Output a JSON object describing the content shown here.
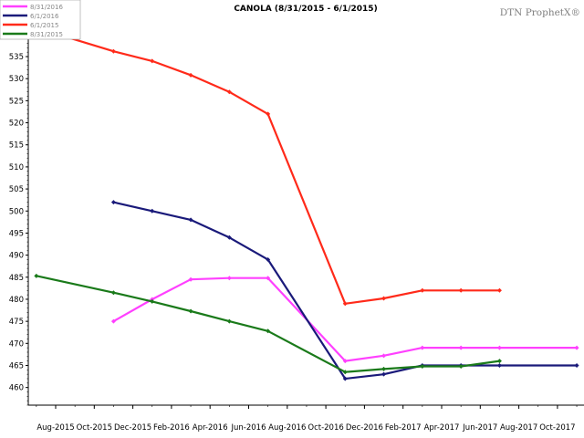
{
  "chart_data": {
    "type": "line",
    "title": "CANOLA (8/31/2015 - 6/1/2015)",
    "watermark": "DTN ProphetX®",
    "xlabel": "",
    "ylabel": "",
    "ylim": [
      456,
      547
    ],
    "y_ticks": [
      460,
      465,
      470,
      475,
      480,
      485,
      490,
      495,
      500,
      505,
      510,
      515,
      520,
      525,
      530,
      535,
      540,
      545
    ],
    "x_tick_labels": [
      "Aug-2015",
      "Oct-2015",
      "Dec-2015",
      "Feb-2016",
      "Apr-2016",
      "Jun-2016",
      "Aug-2016",
      "Oct-2016",
      "Dec-2016",
      "Feb-2017",
      "Apr-2017",
      "Jun-2017",
      "Aug-2017",
      "Oct-2017"
    ],
    "grid": false,
    "legend_position": "top-left",
    "series": [
      {
        "name": "8/31/2016",
        "color": "#ff40ff",
        "points": [
          {
            "x": "Nov-2015",
            "y": 475.0
          },
          {
            "x": "Jan-2016",
            "y": 480.0
          },
          {
            "x": "Mar-2016",
            "y": 484.5
          },
          {
            "x": "May-2016",
            "y": 484.8
          },
          {
            "x": "Jul-2016",
            "y": 484.8
          },
          {
            "x": "Nov-2016",
            "y": 466.0
          },
          {
            "x": "Jan-2017",
            "y": 467.2
          },
          {
            "x": "Mar-2017",
            "y": 469.0
          },
          {
            "x": "May-2017",
            "y": 469.0
          },
          {
            "x": "Jul-2017",
            "y": 469.0
          },
          {
            "x": "Nov-2017",
            "y": 469.0
          }
        ]
      },
      {
        "name": "6/1/2016",
        "color": "#1a1a7a",
        "points": [
          {
            "x": "Nov-2015",
            "y": 502.0
          },
          {
            "x": "Jan-2016",
            "y": 500.0
          },
          {
            "x": "Mar-2016",
            "y": 498.0
          },
          {
            "x": "May-2016",
            "y": 494.0
          },
          {
            "x": "Jul-2016",
            "y": 489.0
          },
          {
            "x": "Nov-2016",
            "y": 462.0
          },
          {
            "x": "Jan-2017",
            "y": 463.0
          },
          {
            "x": "Mar-2017",
            "y": 465.0
          },
          {
            "x": "May-2017",
            "y": 465.0
          },
          {
            "x": "Jul-2017",
            "y": 465.0
          },
          {
            "x": "Nov-2017",
            "y": 465.0
          }
        ]
      },
      {
        "name": "6/1/2015",
        "color": "#ff2a1a",
        "points": [
          {
            "x": "Jul-2015",
            "y": 541.5
          },
          {
            "x": "Nov-2015",
            "y": 536.2
          },
          {
            "x": "Jan-2016",
            "y": 534.0
          },
          {
            "x": "Mar-2016",
            "y": 530.8
          },
          {
            "x": "May-2016",
            "y": 527.0
          },
          {
            "x": "Jul-2016",
            "y": 522.0
          },
          {
            "x": "Nov-2016",
            "y": 479.0
          },
          {
            "x": "Jan-2017",
            "y": 480.2
          },
          {
            "x": "Mar-2017",
            "y": 482.0
          },
          {
            "x": "May-2017",
            "y": 482.0
          },
          {
            "x": "Jul-2017",
            "y": 482.0
          }
        ]
      },
      {
        "name": "8/31/2015",
        "color": "#1a7a1a",
        "points": [
          {
            "x": "Jul-2015",
            "y": 485.3
          },
          {
            "x": "Nov-2015",
            "y": 481.5
          },
          {
            "x": "Jan-2016",
            "y": 479.5
          },
          {
            "x": "Mar-2016",
            "y": 477.3
          },
          {
            "x": "May-2016",
            "y": 475.0
          },
          {
            "x": "Jul-2016",
            "y": 472.8
          },
          {
            "x": "Nov-2016",
            "y": 463.5
          },
          {
            "x": "Jan-2017",
            "y": 464.2
          },
          {
            "x": "Mar-2017",
            "y": 464.8
          },
          {
            "x": "May-2017",
            "y": 464.8
          },
          {
            "x": "Jul-2017",
            "y": 466.0
          }
        ]
      }
    ]
  }
}
